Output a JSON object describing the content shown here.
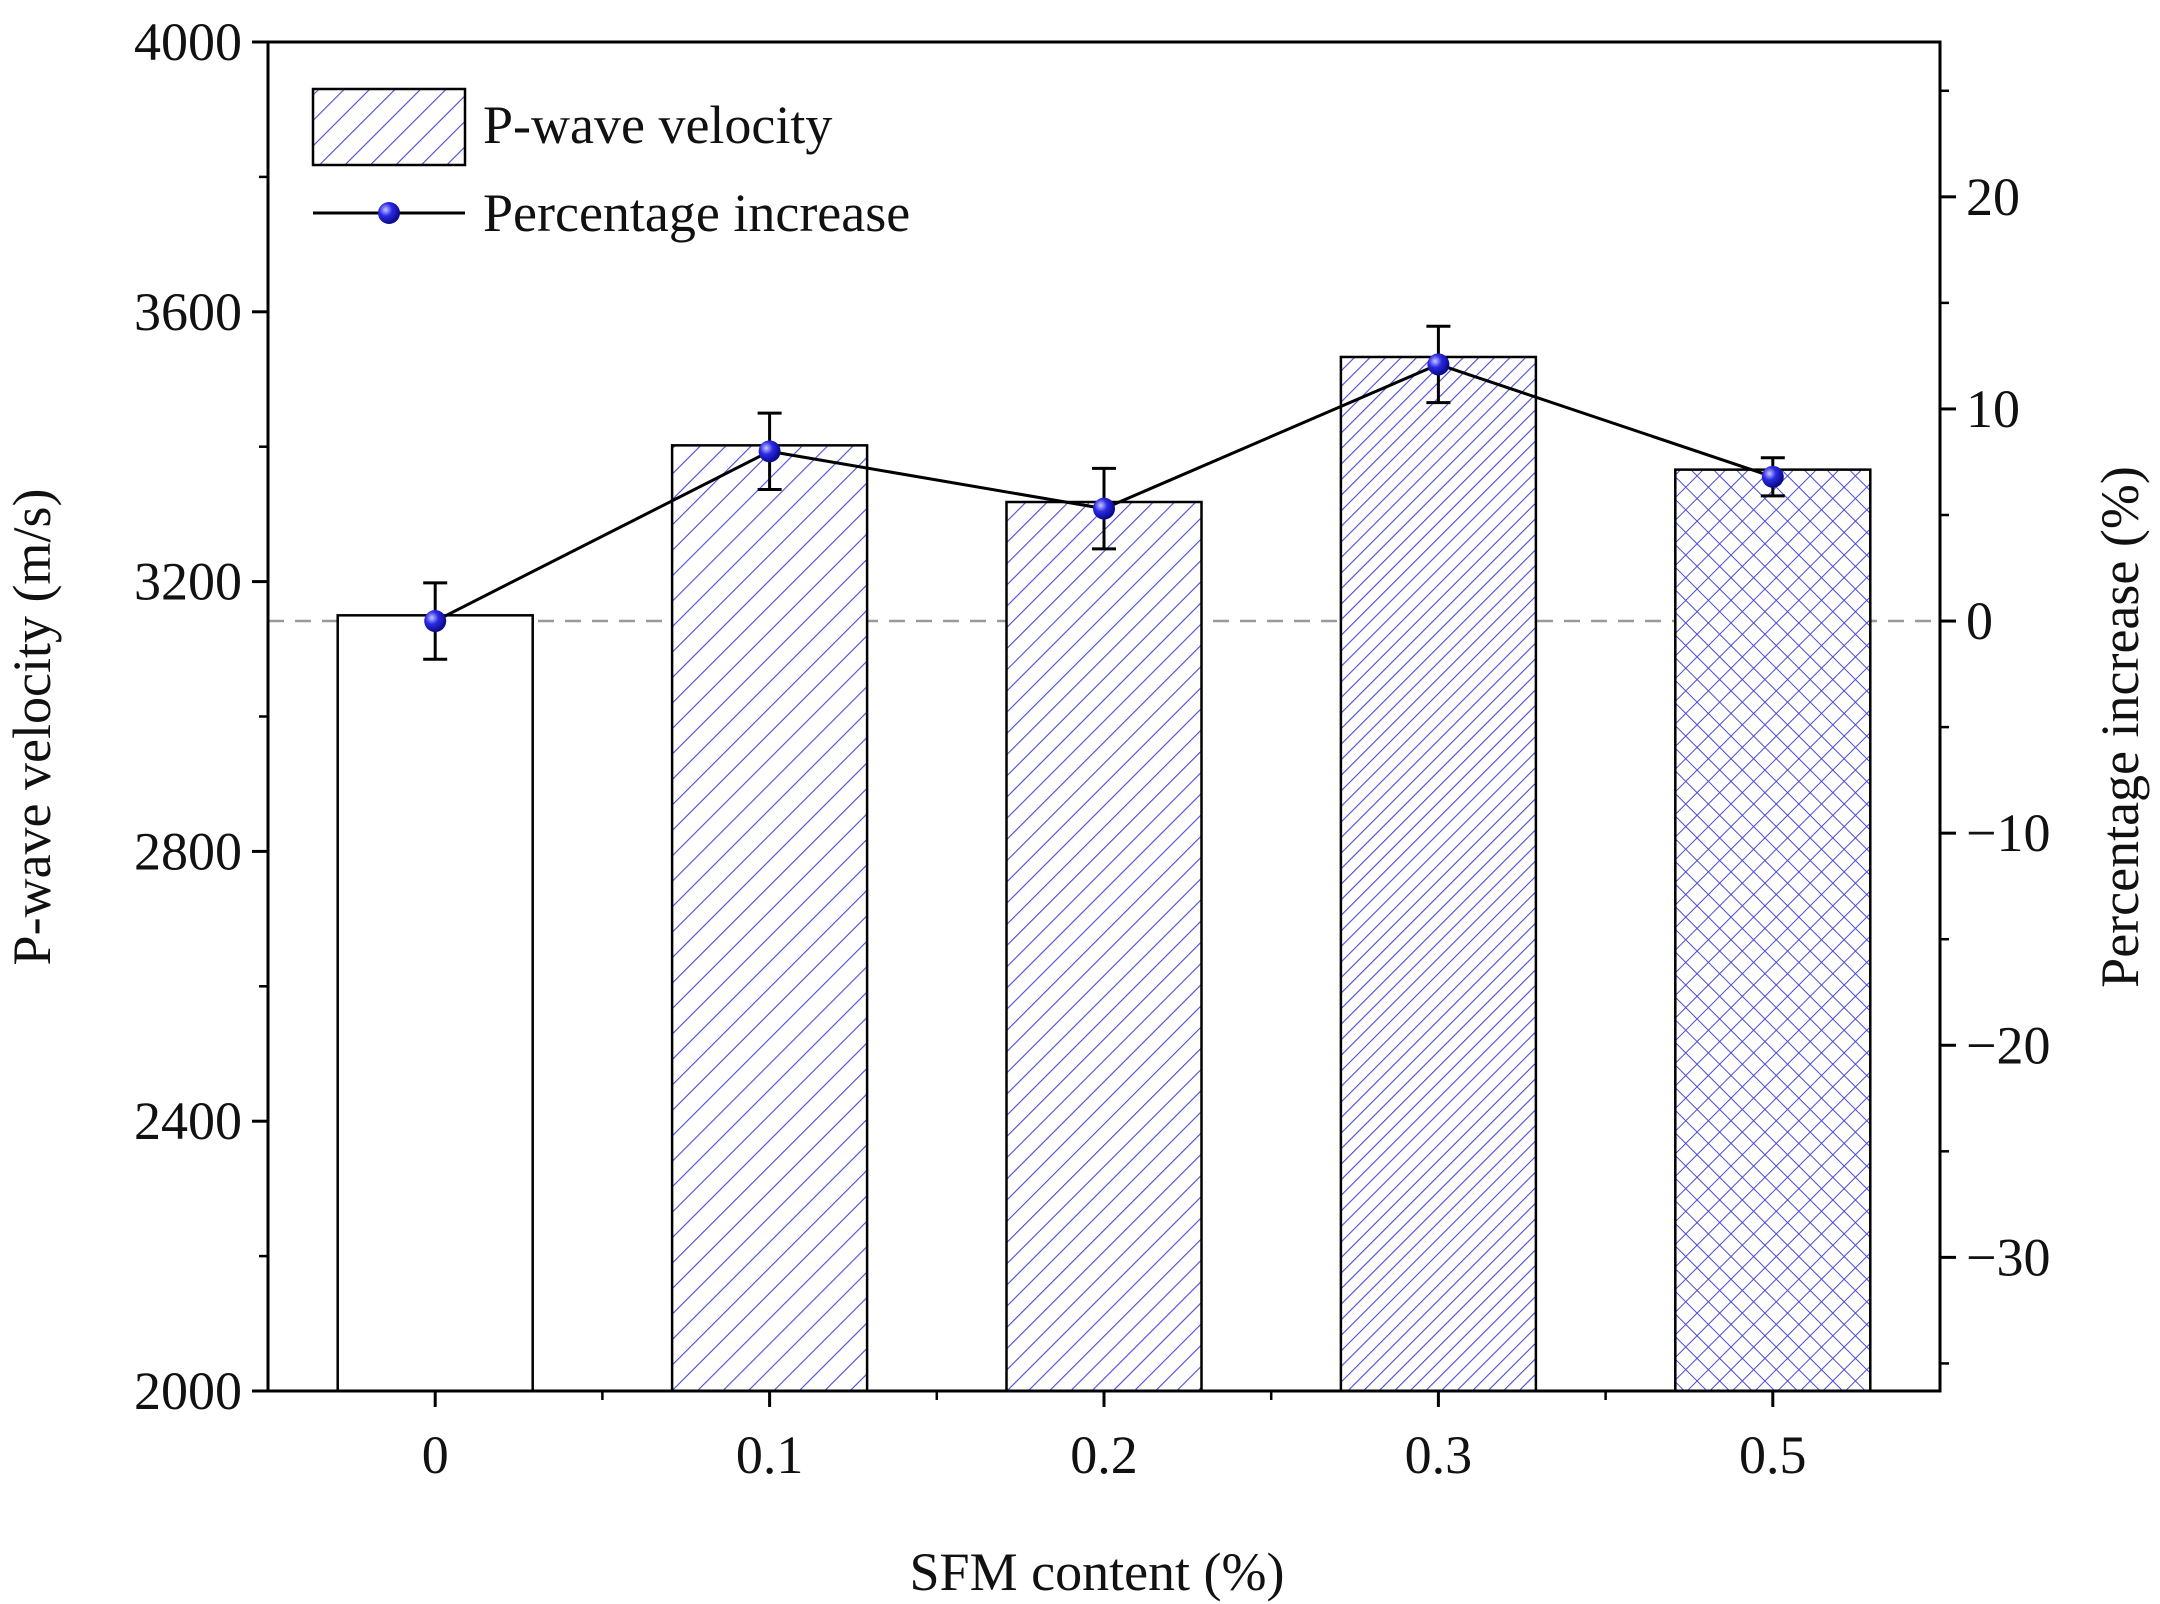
{
  "chart_data": {
    "type": "bar",
    "categories": [
      "0",
      "0.1",
      "0.2",
      "0.3",
      "0.5"
    ],
    "series": [
      {
        "name": "P-wave velocity",
        "kind": "bar",
        "axis": "left",
        "values": [
          3150,
          3402,
          3318,
          3533,
          3366
        ],
        "patterns": [
          "none",
          "diag-sparse",
          "diag",
          "diag-dense",
          "crosshatch"
        ]
      },
      {
        "name": "Percentage increase",
        "kind": "line",
        "axis": "right",
        "values": [
          0,
          8.0,
          5.3,
          12.1,
          6.8
        ],
        "error": [
          1.8,
          1.8,
          1.9,
          1.8,
          0.9
        ]
      }
    ],
    "baseline_right": 0,
    "xlabel": "SFM content (%)",
    "ylabel": "P-wave velocity (m/s)",
    "y2label": "Percentage increase (%)",
    "ylim": [
      2000,
      4000
    ],
    "y2lim": [
      -36.3,
      27.3
    ],
    "yticks": [
      2000,
      2400,
      2800,
      3200,
      3600,
      4000
    ],
    "y2ticks": [
      -30,
      -20,
      -10,
      0,
      10,
      20
    ],
    "legend": {
      "position": "top-left",
      "entries": [
        "P-wave velocity",
        "Percentage increase"
      ]
    },
    "colors": {
      "pattern": "#4a4ad8",
      "marker": "#2323e0",
      "line": "#000000",
      "frame": "#000000",
      "baseline": "#999999"
    }
  }
}
